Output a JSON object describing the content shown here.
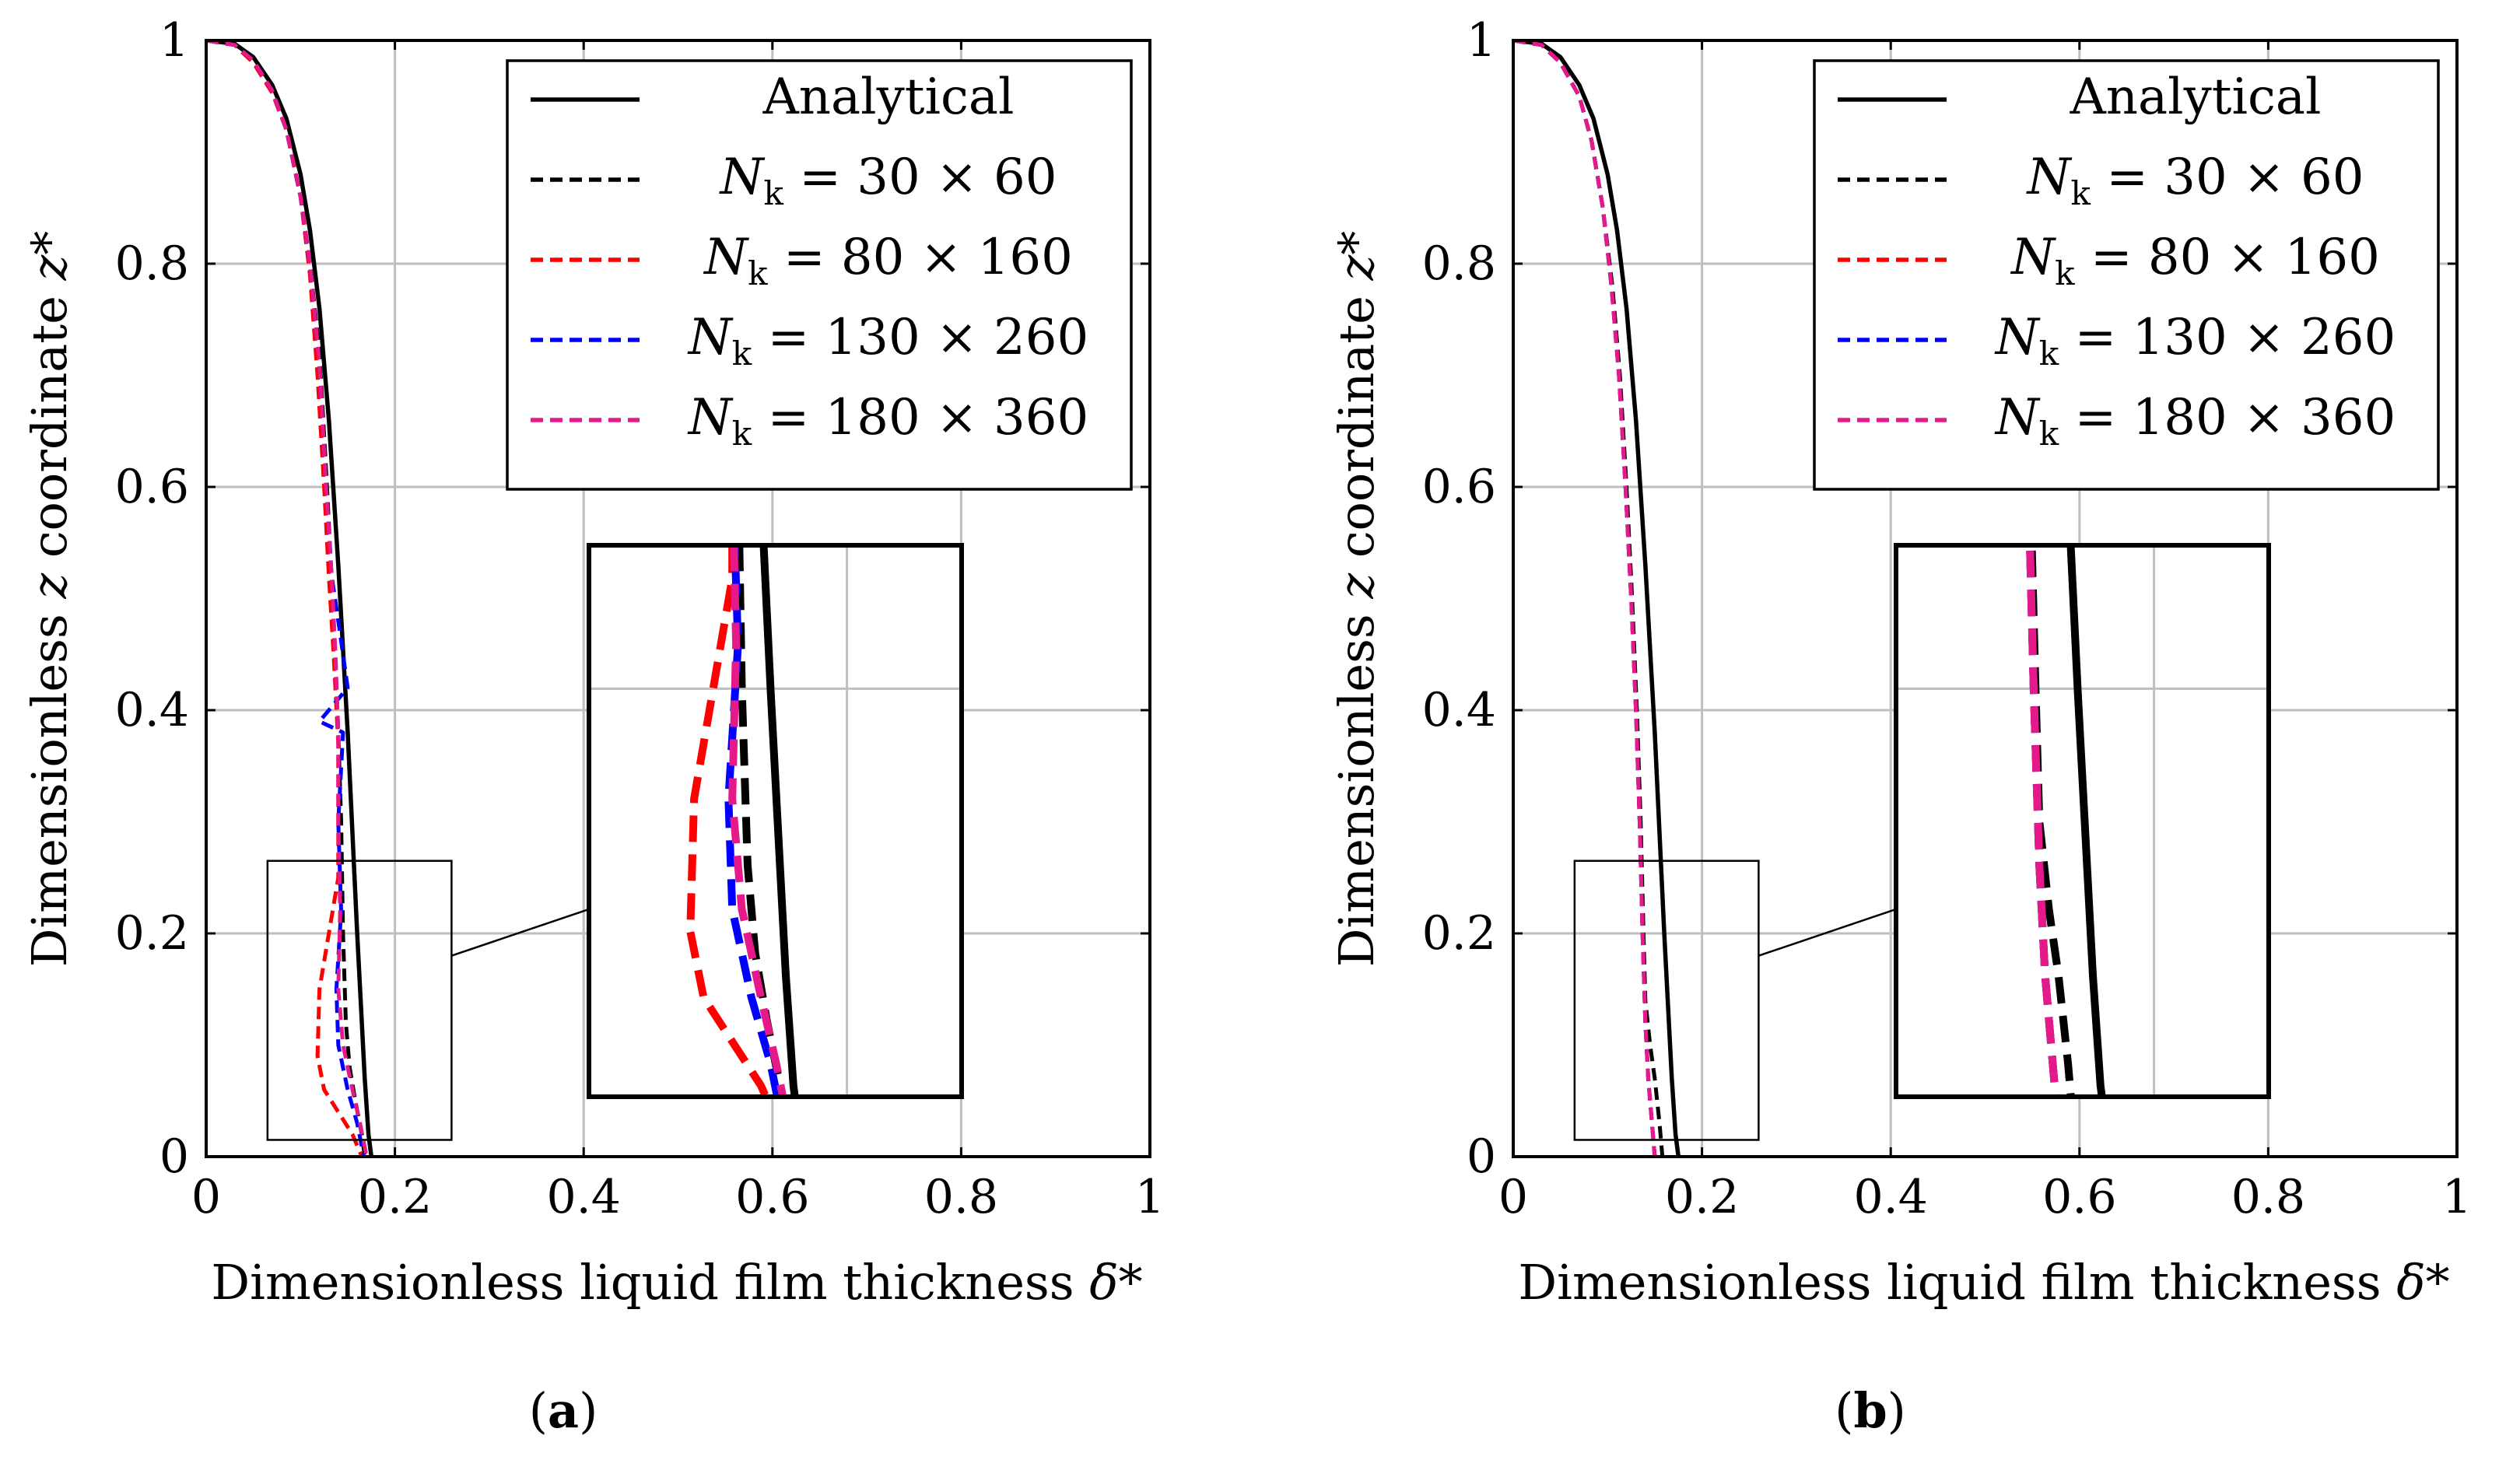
{
  "chart_data": [
    {
      "panel": "a",
      "caption": "(a)",
      "type": "line",
      "xlabel_prefix": "Dimensionless liquid film thickness",
      "xlabel_symbol": "δ*",
      "ylabel_prefix": "Dimensionless",
      "ylabel_var": "z",
      "ylabel_suffix": "coordinate",
      "ylabel_symbol": "z*",
      "xlim": [
        0,
        1
      ],
      "ylim": [
        0,
        1
      ],
      "xticks": [
        "0",
        "0.2",
        "0.4",
        "0.6",
        "0.8",
        "1"
      ],
      "yticks": [
        "0",
        "0.2",
        "0.4",
        "0.6",
        "0.8",
        "1"
      ],
      "grid": true,
      "legend_position": "top-right",
      "zoom": {
        "xlim": [
          0.065,
          0.26
        ],
        "ylim": [
          0.015,
          0.265
        ]
      },
      "series": [
        {
          "name": "Analytical",
          "label_main": "Analytical",
          "label_grid": "",
          "color": "#000000",
          "dashed": false,
          "x": [
            0.0,
            0.03,
            0.05,
            0.07,
            0.085,
            0.1,
            0.11,
            0.12,
            0.13,
            0.14,
            0.15,
            0.16,
            0.168,
            0.172,
            0.175
          ],
          "y": [
            1.0,
            0.997,
            0.985,
            0.96,
            0.93,
            0.88,
            0.83,
            0.76,
            0.66,
            0.53,
            0.38,
            0.2,
            0.07,
            0.02,
            0.0
          ]
        },
        {
          "name": "Nk = 30 × 60",
          "label_main": "N",
          "label_grid": " = 30 × 60",
          "color": "#000000",
          "dashed": true,
          "x": [
            0.0,
            0.03,
            0.05,
            0.07,
            0.085,
            0.1,
            0.11,
            0.12,
            0.128,
            0.135,
            0.14,
            0.143,
            0.145,
            0.148,
            0.152,
            0.158,
            0.165,
            0.168
          ],
          "y": [
            1.0,
            0.996,
            0.982,
            0.955,
            0.92,
            0.86,
            0.8,
            0.72,
            0.6,
            0.48,
            0.38,
            0.3,
            0.2,
            0.12,
            0.08,
            0.05,
            0.02,
            0.0
          ]
        },
        {
          "name": "Nk = 80 × 160",
          "label_main": "N",
          "label_grid": " = 80 × 160",
          "color": "#ff0000",
          "dashed": true,
          "x": [
            0.0,
            0.03,
            0.05,
            0.07,
            0.085,
            0.1,
            0.11,
            0.118,
            0.125,
            0.13,
            0.135,
            0.14,
            0.14,
            0.13,
            0.12,
            0.118,
            0.125,
            0.14,
            0.155,
            0.165
          ],
          "y": [
            1.0,
            0.996,
            0.98,
            0.953,
            0.92,
            0.86,
            0.79,
            0.7,
            0.6,
            0.52,
            0.45,
            0.37,
            0.25,
            0.2,
            0.15,
            0.09,
            0.06,
            0.04,
            0.02,
            0.0
          ]
        },
        {
          "name": "Nk = 130 × 260",
          "label_main": "N",
          "label_grid": " = 130 × 260",
          "color": "#0000ff",
          "dashed": true,
          "x": [
            0.0,
            0.03,
            0.05,
            0.07,
            0.085,
            0.1,
            0.11,
            0.12,
            0.127,
            0.133,
            0.14,
            0.15,
            0.12,
            0.145,
            0.14,
            0.143,
            0.138,
            0.14,
            0.15,
            0.16,
            0.167
          ],
          "y": [
            1.0,
            0.996,
            0.982,
            0.955,
            0.92,
            0.86,
            0.8,
            0.71,
            0.6,
            0.52,
            0.48,
            0.42,
            0.39,
            0.38,
            0.3,
            0.22,
            0.15,
            0.1,
            0.06,
            0.03,
            0.0
          ]
        },
        {
          "name": "Nk = 180 × 360",
          "label_main": "N",
          "label_grid": " = 180 × 360",
          "color": "#e6198b",
          "dashed": true,
          "x": [
            0.0,
            0.03,
            0.05,
            0.07,
            0.085,
            0.1,
            0.11,
            0.12,
            0.127,
            0.133,
            0.137,
            0.14,
            0.14,
            0.142,
            0.14,
            0.145,
            0.155,
            0.163,
            0.17
          ],
          "y": [
            1.0,
            0.996,
            0.982,
            0.955,
            0.92,
            0.86,
            0.8,
            0.71,
            0.6,
            0.52,
            0.45,
            0.38,
            0.3,
            0.22,
            0.15,
            0.1,
            0.06,
            0.03,
            0.0
          ]
        }
      ]
    },
    {
      "panel": "b",
      "caption": "(b)",
      "type": "line",
      "xlabel_prefix": "Dimensionless liquid film thickness",
      "xlabel_symbol": "δ*",
      "ylabel_prefix": "Dimensionless",
      "ylabel_var": "z",
      "ylabel_suffix": "coordinate",
      "ylabel_symbol": "z*",
      "xlim": [
        0,
        1
      ],
      "ylim": [
        0,
        1
      ],
      "xticks": [
        "0",
        "0.2",
        "0.4",
        "0.6",
        "0.8",
        "1"
      ],
      "yticks": [
        "0",
        "0.2",
        "0.4",
        "0.6",
        "0.8",
        "1"
      ],
      "grid": true,
      "legend_position": "top-right",
      "zoom": {
        "xlim": [
          0.065,
          0.26
        ],
        "ylim": [
          0.015,
          0.265
        ]
      },
      "series": [
        {
          "name": "Analytical",
          "label_main": "Analytical",
          "label_grid": "",
          "color": "#000000",
          "dashed": false,
          "x": [
            0.0,
            0.03,
            0.05,
            0.07,
            0.085,
            0.1,
            0.11,
            0.12,
            0.13,
            0.14,
            0.15,
            0.16,
            0.168,
            0.172,
            0.175
          ],
          "y": [
            1.0,
            0.997,
            0.985,
            0.96,
            0.93,
            0.88,
            0.83,
            0.76,
            0.66,
            0.53,
            0.38,
            0.2,
            0.07,
            0.02,
            0.0
          ]
        },
        {
          "name": "Nk = 30 × 60",
          "label_main": "N",
          "label_grid": " = 30 × 60",
          "color": "#000000",
          "dashed": true,
          "x": [
            0.0,
            0.03,
            0.05,
            0.07,
            0.083,
            0.095,
            0.105,
            0.113,
            0.12,
            0.126,
            0.131,
            0.135,
            0.138,
            0.14,
            0.145,
            0.15,
            0.155,
            0.158
          ],
          "y": [
            1.0,
            0.996,
            0.98,
            0.95,
            0.91,
            0.85,
            0.78,
            0.7,
            0.6,
            0.5,
            0.4,
            0.3,
            0.2,
            0.14,
            0.1,
            0.07,
            0.03,
            0.0
          ]
        },
        {
          "name": "Nk = 80 × 160",
          "label_main": "N",
          "label_grid": " = 80 × 160",
          "color": "#ff0000",
          "dashed": true,
          "x": [
            0.0,
            0.03,
            0.05,
            0.07,
            0.083,
            0.095,
            0.104,
            0.112,
            0.119,
            0.125,
            0.13,
            0.134,
            0.137,
            0.14,
            0.143,
            0.147,
            0.15
          ],
          "y": [
            1.0,
            0.996,
            0.98,
            0.95,
            0.91,
            0.85,
            0.78,
            0.7,
            0.6,
            0.5,
            0.4,
            0.3,
            0.2,
            0.12,
            0.07,
            0.03,
            0.0
          ]
        },
        {
          "name": "Nk = 130 × 260",
          "label_main": "N",
          "label_grid": " = 130 × 260",
          "color": "#0000ff",
          "dashed": true,
          "x": [
            0.0,
            0.03,
            0.05,
            0.07,
            0.083,
            0.095,
            0.104,
            0.112,
            0.119,
            0.125,
            0.13,
            0.134,
            0.137,
            0.14,
            0.143,
            0.147,
            0.15
          ],
          "y": [
            1.0,
            0.996,
            0.98,
            0.95,
            0.91,
            0.85,
            0.78,
            0.7,
            0.6,
            0.5,
            0.4,
            0.3,
            0.2,
            0.12,
            0.07,
            0.03,
            0.0
          ]
        },
        {
          "name": "Nk = 180 × 360",
          "label_main": "N",
          "label_grid": " = 180 × 360",
          "color": "#e6198b",
          "dashed": true,
          "x": [
            0.0,
            0.03,
            0.05,
            0.07,
            0.083,
            0.095,
            0.104,
            0.112,
            0.119,
            0.125,
            0.13,
            0.134,
            0.137,
            0.14,
            0.143,
            0.147,
            0.15
          ],
          "y": [
            1.0,
            0.996,
            0.98,
            0.95,
            0.91,
            0.85,
            0.78,
            0.7,
            0.6,
            0.5,
            0.4,
            0.3,
            0.2,
            0.12,
            0.07,
            0.03,
            0.0
          ]
        }
      ]
    }
  ]
}
